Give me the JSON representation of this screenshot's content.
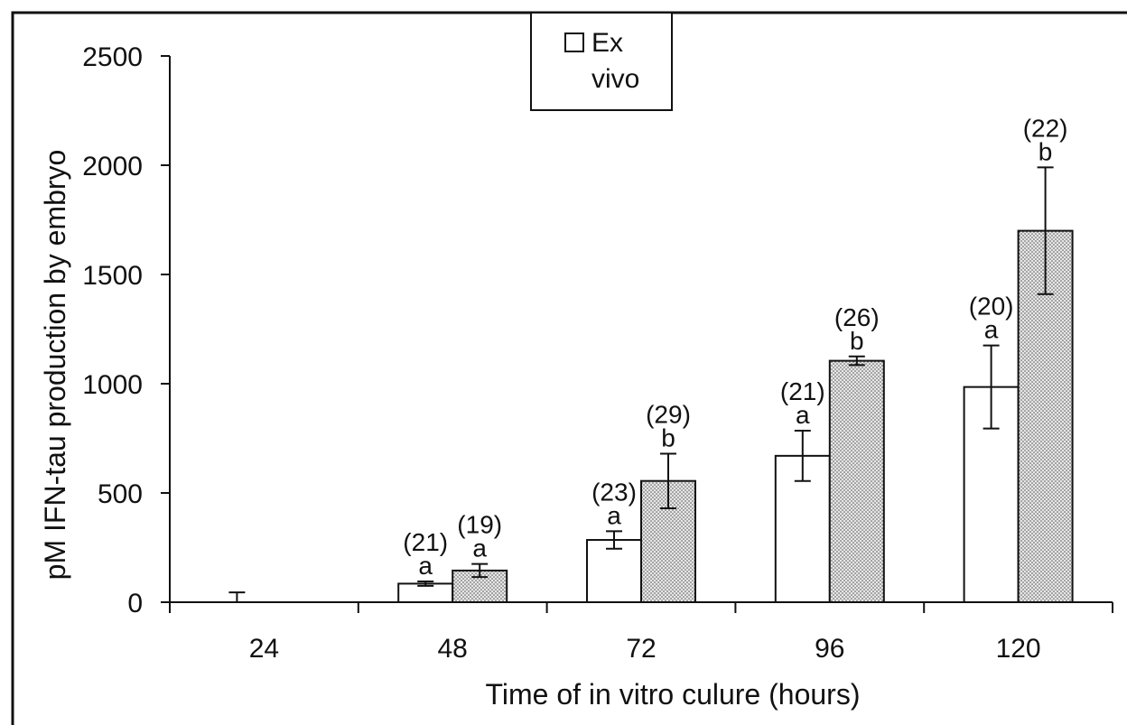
{
  "chart_data": {
    "type": "bar",
    "title": "",
    "xlabel": "Time of in vitro culure (hours)",
    "ylabel": "pM IFN-tau production by embryo",
    "categories": [
      "24",
      "48",
      "72",
      "96",
      "120"
    ],
    "ylim": [
      0,
      2500
    ],
    "yticks": [
      "0",
      "500",
      "1000",
      "1500",
      "2000",
      "2500"
    ],
    "grid": false,
    "legend_position": "top-center",
    "legend_entries": [
      "Ex vivo"
    ],
    "series": [
      {
        "name": "Ex vivo",
        "fill": "#ffffff",
        "values": [
          0,
          85,
          285,
          670,
          985
        ],
        "errors": [
          45,
          10,
          40,
          115,
          190
        ],
        "letters": [
          "",
          "a",
          "a",
          "a",
          "a"
        ],
        "counts": [
          "",
          "(21)",
          "(23)",
          "(21)",
          "(20)"
        ]
      },
      {
        "fill": "#d8d8d8",
        "values": [
          null,
          145,
          555,
          1105,
          1700
        ],
        "errors": [
          null,
          30,
          125,
          20,
          290
        ],
        "letters": [
          "",
          "a",
          "b",
          "b",
          "b"
        ],
        "counts": [
          "",
          "(19)",
          "(29)",
          "(26)",
          "(22)"
        ]
      }
    ]
  }
}
